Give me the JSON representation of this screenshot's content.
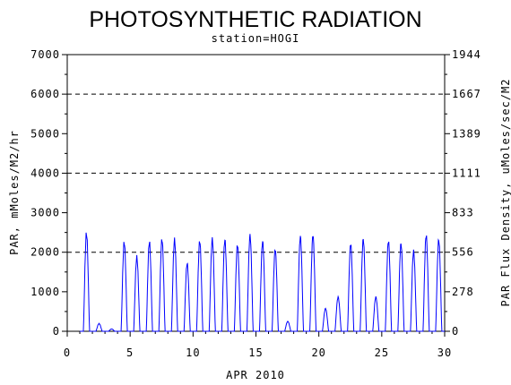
{
  "chart_data": {
    "type": "line",
    "title": "PHOTOSYNTHETIC RADIATION",
    "subtitle": "station=HOGI",
    "xlabel": "APR 2010",
    "ylabel_left": "PAR, mMoles/M2/hr",
    "ylabel_right": "PAR Flux Density, uMoles/sec/M2",
    "xlim": [
      0,
      30
    ],
    "ylim_left": [
      0,
      7000
    ],
    "ylim_right": [
      0,
      1944
    ],
    "x_ticks": [
      "0",
      "5",
      "10",
      "15",
      "20",
      "25",
      "30"
    ],
    "y_ticks_left": [
      "0",
      "1000",
      "2000",
      "3000",
      "4000",
      "5000",
      "6000",
      "7000"
    ],
    "y_ticks_right": [
      "0",
      "278",
      "556",
      "833",
      "1111",
      "1389",
      "1667",
      "1944"
    ],
    "reference_lines": [
      2000,
      4000,
      6000
    ],
    "grid": false,
    "series_color": "#0000ff",
    "daily_peaks": [
      {
        "day": 1,
        "peak": 2560
      },
      {
        "day": 2,
        "peak": 200
      },
      {
        "day": 3,
        "peak": 60
      },
      {
        "day": 4,
        "peak": 2330
      },
      {
        "day": 5,
        "peak": 1940
      },
      {
        "day": 6,
        "peak": 2340
      },
      {
        "day": 7,
        "peak": 2410
      },
      {
        "day": 8,
        "peak": 2400
      },
      {
        "day": 9,
        "peak": 1780
      },
      {
        "day": 10,
        "peak": 2370
      },
      {
        "day": 11,
        "peak": 2420
      },
      {
        "day": 12,
        "peak": 2400
      },
      {
        "day": 13,
        "peak": 2270
      },
      {
        "day": 14,
        "peak": 2520
      },
      {
        "day": 15,
        "peak": 2360
      },
      {
        "day": 16,
        "peak": 2150
      },
      {
        "day": 17,
        "peak": 260
      },
      {
        "day": 18,
        "peak": 2490
      },
      {
        "day": 19,
        "peak": 2520
      },
      {
        "day": 20,
        "peak": 600
      },
      {
        "day": 21,
        "peak": 900
      },
      {
        "day": 22,
        "peak": 2300
      },
      {
        "day": 23,
        "peak": 2420
      },
      {
        "day": 24,
        "peak": 900
      },
      {
        "day": 25,
        "peak": 2370
      },
      {
        "day": 26,
        "peak": 2300
      },
      {
        "day": 27,
        "peak": 2100
      },
      {
        "day": 28,
        "peak": 2520
      },
      {
        "day": 29,
        "peak": 2400
      }
    ]
  }
}
